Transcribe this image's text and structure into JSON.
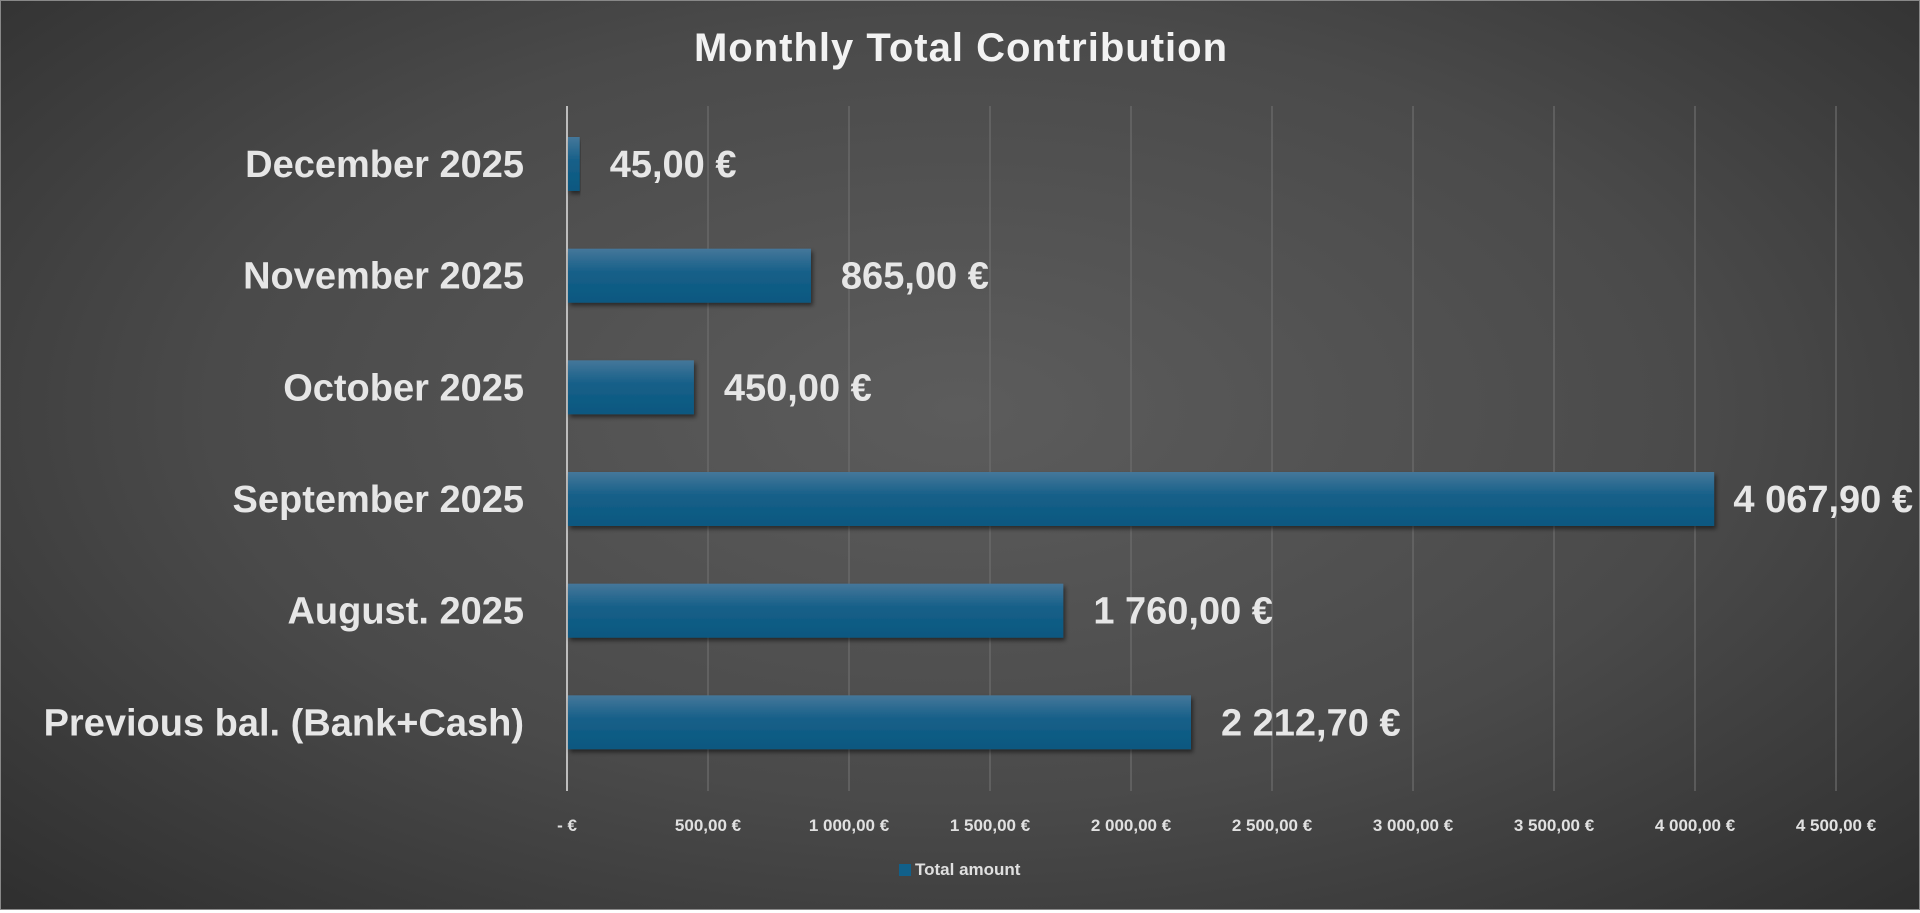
{
  "chart_data": {
    "type": "bar",
    "orientation": "horizontal",
    "title": "Monthly Total Contribution",
    "categories": [
      "December 2025",
      "November 2025",
      "October 2025",
      "September 2025",
      "August. 2025",
      "Previous bal. (Bank+Cash)"
    ],
    "series": [
      {
        "name": "Total amount",
        "values": [
          45.0,
          865.0,
          450.0,
          4067.9,
          1760.0,
          2212.7
        ],
        "color": "#11608a"
      }
    ],
    "data_labels": [
      "45,00 €",
      "865,00 €",
      "450,00 €",
      "4 067,90 €",
      "1 760,00 €",
      "2 212,70 €"
    ],
    "xlim": [
      0,
      4500
    ],
    "x_ticks": [
      0,
      500,
      1000,
      1500,
      2000,
      2500,
      3000,
      3500,
      4000,
      4500
    ],
    "x_tick_labels": [
      "-  €",
      "500,00 €",
      "1 000,00 €",
      "1 500,00 €",
      "2 000,00 €",
      "2 500,00 €",
      "3 000,00 €",
      "3 500,00 €",
      "4 000,00 €",
      "4 500,00 €"
    ],
    "grid": "vertical",
    "legend": "bottom",
    "xlabel": "",
    "ylabel": ""
  }
}
